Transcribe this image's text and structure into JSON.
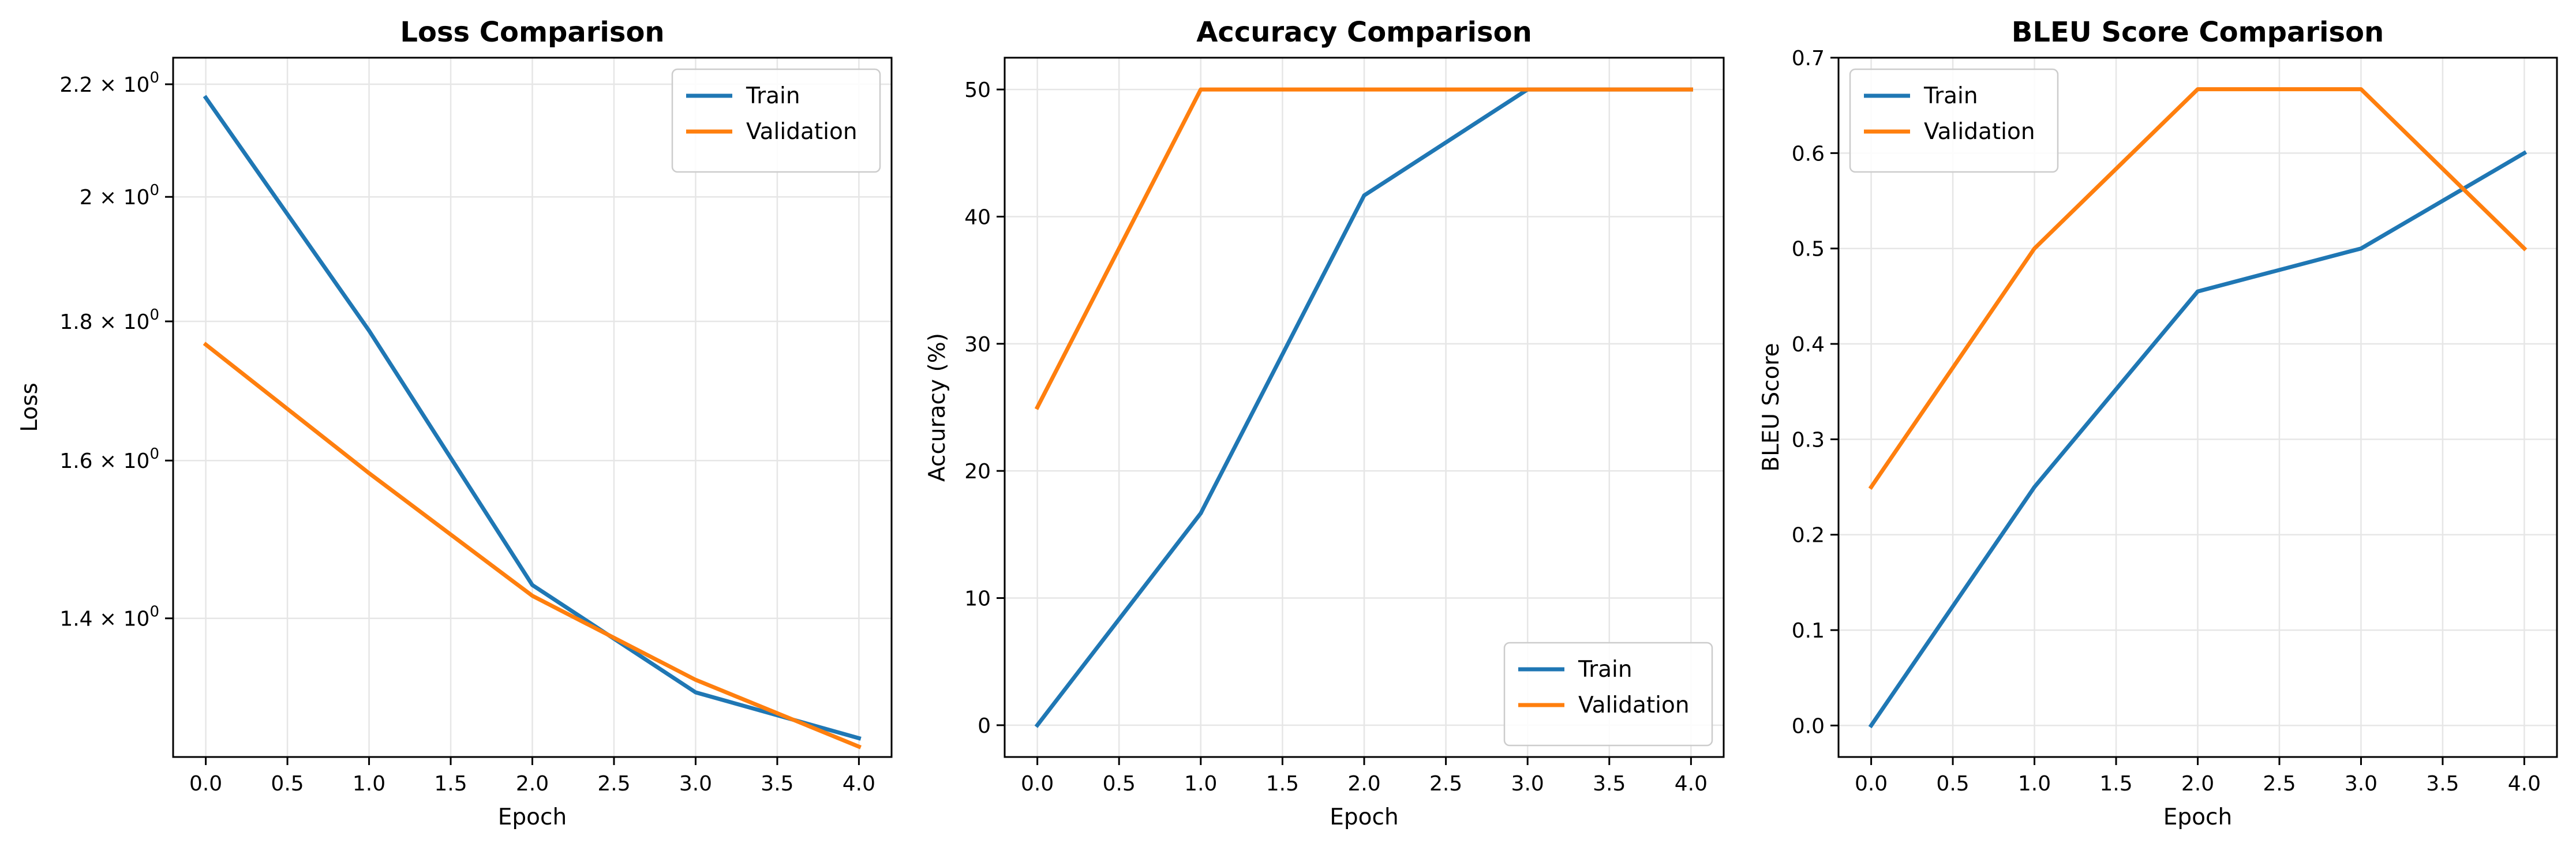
{
  "colors": {
    "train": "#1f77b4",
    "validation": "#ff7f0e",
    "grid": "#e6e6e6",
    "axis": "#000000"
  },
  "chart_data": [
    {
      "type": "line",
      "title": "Loss Comparison",
      "xlabel": "Epoch",
      "ylabel": "Loss",
      "yscale": "log",
      "xlim": [
        -0.2,
        4.2
      ],
      "ylim": [
        1.245,
        2.25
      ],
      "grid": true,
      "legend": "upper right",
      "x": [
        0,
        1,
        2,
        3,
        4
      ],
      "xticks": [
        0.0,
        0.5,
        1.0,
        1.5,
        2.0,
        2.5,
        3.0,
        3.5,
        4.0
      ],
      "xtick_labels": [
        "0.0",
        "0.5",
        "1.0",
        "1.5",
        "2.0",
        "2.5",
        "3.0",
        "3.5",
        "4.0"
      ],
      "yticks": [
        1.4,
        1.6,
        1.8,
        2.0,
        2.2
      ],
      "ytick_labels": [
        {
          "mantissa": "1.4 × 10",
          "exp": "0"
        },
        {
          "mantissa": "1.6 × 10",
          "exp": "0"
        },
        {
          "mantissa": "1.8 × 10",
          "exp": "0"
        },
        {
          "mantissa": "2 × 10",
          "exp": "0"
        },
        {
          "mantissa": "2.2 × 10",
          "exp": "0"
        }
      ],
      "series": [
        {
          "name": "Train",
          "values": [
            2.175,
            1.786,
            1.44,
            1.315,
            1.265
          ],
          "color": "#1f77b4"
        },
        {
          "name": "Validation",
          "values": [
            1.765,
            1.583,
            1.427,
            1.329,
            1.256
          ],
          "color": "#ff7f0e"
        }
      ]
    },
    {
      "type": "line",
      "title": "Accuracy Comparison",
      "xlabel": "Epoch",
      "ylabel": "Accuracy (%)",
      "yscale": "linear",
      "xlim": [
        -0.2,
        4.2
      ],
      "ylim": [
        -2.5,
        52.5
      ],
      "grid": true,
      "legend": "lower right",
      "x": [
        0,
        1,
        2,
        3,
        4
      ],
      "xticks": [
        0.0,
        0.5,
        1.0,
        1.5,
        2.0,
        2.5,
        3.0,
        3.5,
        4.0
      ],
      "xtick_labels": [
        "0.0",
        "0.5",
        "1.0",
        "1.5",
        "2.0",
        "2.5",
        "3.0",
        "3.5",
        "4.0"
      ],
      "yticks": [
        0,
        10,
        20,
        30,
        40,
        50
      ],
      "ytick_labels": [
        "0",
        "10",
        "20",
        "30",
        "40",
        "50"
      ],
      "series": [
        {
          "name": "Train",
          "values": [
            0,
            16.67,
            41.67,
            50,
            50
          ],
          "color": "#1f77b4"
        },
        {
          "name": "Validation",
          "values": [
            25,
            50,
            50,
            50,
            50
          ],
          "color": "#ff7f0e"
        }
      ]
    },
    {
      "type": "line",
      "title": "BLEU Score Comparison",
      "xlabel": "Epoch",
      "ylabel": "BLEU Score",
      "yscale": "linear",
      "xlim": [
        -0.2,
        4.2
      ],
      "ylim": [
        -0.033,
        0.7
      ],
      "grid": true,
      "legend": "upper left",
      "x": [
        0,
        1,
        2,
        3,
        4
      ],
      "xticks": [
        0.0,
        0.5,
        1.0,
        1.5,
        2.0,
        2.5,
        3.0,
        3.5,
        4.0
      ],
      "xtick_labels": [
        "0.0",
        "0.5",
        "1.0",
        "1.5",
        "2.0",
        "2.5",
        "3.0",
        "3.5",
        "4.0"
      ],
      "yticks": [
        0.0,
        0.1,
        0.2,
        0.3,
        0.4,
        0.5,
        0.6,
        0.7
      ],
      "ytick_labels": [
        "0.0",
        "0.1",
        "0.2",
        "0.3",
        "0.4",
        "0.5",
        "0.6",
        "0.7"
      ],
      "series": [
        {
          "name": "Train",
          "values": [
            0.0,
            0.25,
            0.455,
            0.5,
            0.6
          ],
          "color": "#1f77b4"
        },
        {
          "name": "Validation",
          "values": [
            0.25,
            0.5,
            0.667,
            0.667,
            0.5
          ],
          "color": "#ff7f0e"
        }
      ]
    }
  ]
}
